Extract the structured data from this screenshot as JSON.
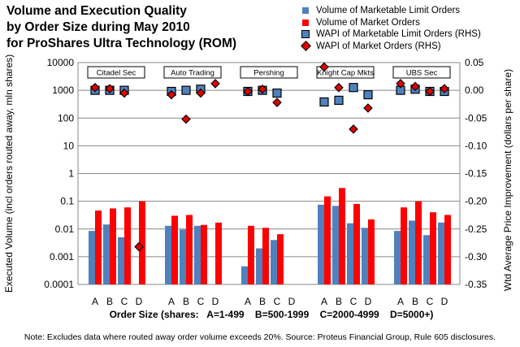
{
  "title_lines": [
    "Volume and Execution Quality",
    "by Order Size during May 2010",
    "for ProShares Ultra Technology (ROM)"
  ],
  "note": "Note: Excludes data where routed away order volume exceeds 20%. Source: Proteus Financial Group, Rule 605 disclosures.",
  "legend": [
    {
      "label": "Volume of Marketable Limit Orders",
      "symbol": "square",
      "color": "#4f81bd"
    },
    {
      "label": "Volume of Market Orders",
      "symbol": "square",
      "color": "#ff0000"
    },
    {
      "label": "WAPI of Marketable Limit Orders (RHS)",
      "symbol": "outlined-square",
      "color": "#4f81bd"
    },
    {
      "label": "WAPI of Market Orders (RHS)",
      "symbol": "diamond",
      "color": "#e00000"
    }
  ],
  "chart_data": {
    "type": "bar",
    "ylabel": "Executed Volume (incl orders routed away, mln shares)",
    "y2label": "Wtd Average Price Improvement (dollars per share)",
    "xlabel": "Order Size (shares:   A=1-499    B=500-1999    C=2000-4999    D=5000+)",
    "y_scale": "log",
    "ylim": [
      0.0001,
      10000
    ],
    "y_ticks": [
      "0.0001",
      "0.001",
      "0.01",
      "0.1",
      "1",
      "10",
      "100",
      "1000",
      "10000"
    ],
    "y2lim": [
      -0.35,
      0.05
    ],
    "y2_ticks": [
      "0.05",
      "0.00",
      "-0.05",
      "-0.10",
      "-0.15",
      "-0.20",
      "-0.25",
      "-0.30",
      "-0.35"
    ],
    "grid": true,
    "order_sizes": [
      "A",
      "B",
      "C",
      "D"
    ],
    "groups": [
      {
        "name": "Citadel Sec",
        "vol_mlo": [
          0.0085,
          0.0145,
          0.005,
          null
        ],
        "vol_mo": [
          0.046,
          0.055,
          0.06,
          0.1
        ],
        "wapi_mlo": [
          0.0,
          0.0,
          0.0,
          null
        ],
        "wapi_mo": [
          0.005,
          0.003,
          -0.005,
          -0.282
        ]
      },
      {
        "name": "Auto Trading",
        "vol_mlo": [
          0.013,
          0.0095,
          0.013,
          null
        ],
        "vol_mo": [
          0.03,
          0.032,
          0.014,
          0.017
        ],
        "wapi_mlo": [
          -0.002,
          0.0,
          0.002,
          null
        ],
        "wapi_mo": [
          -0.008,
          -0.052,
          -0.005,
          0.012
        ]
      },
      {
        "name": "Pershing",
        "vol_mlo": [
          0.00045,
          0.002,
          0.004,
          null
        ],
        "vol_mo": [
          0.013,
          0.011,
          0.0065,
          null
        ],
        "wapi_mlo": [
          -0.002,
          0.0,
          -0.005,
          null
        ],
        "wapi_mo": [
          -0.002,
          0.002,
          -0.022,
          null
        ]
      },
      {
        "name": "Knight Cap Mkts",
        "vol_mlo": [
          0.075,
          0.068,
          0.016,
          0.011
        ],
        "vol_mo": [
          0.15,
          0.3,
          0.08,
          0.022
        ],
        "wapi_mlo": [
          -0.021,
          -0.018,
          0.005,
          -0.008
        ],
        "wapi_mo": [
          0.042,
          0.005,
          -0.07,
          -0.032
        ]
      },
      {
        "name": "UBS Sec",
        "vol_mlo": [
          0.0085,
          0.02,
          0.006,
          0.017
        ],
        "vol_mo": [
          0.06,
          0.1,
          0.04,
          0.032
        ],
        "wapi_mlo": [
          0.0,
          0.002,
          -0.002,
          -0.002
        ],
        "wapi_mo": [
          0.012,
          0.007,
          -0.002,
          0.003
        ]
      }
    ]
  }
}
